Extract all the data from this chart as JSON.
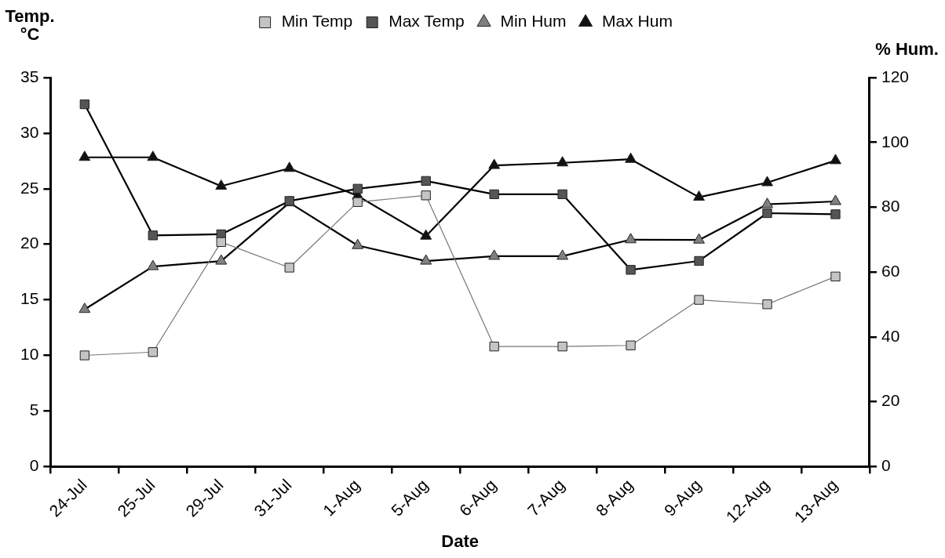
{
  "chart_data": {
    "type": "line",
    "xlabel": "Date",
    "ylabel": "Temp.\n°C",
    "y2label": "% Hum.",
    "categories": [
      "24-Jul",
      "25-Jul",
      "29-Jul",
      "31-Jul",
      "1-Aug",
      "5-Aug",
      "6-Aug",
      "7-Aug",
      "8-Aug",
      "9-Aug",
      "12-Aug",
      "13-Aug"
    ],
    "ylim": [
      0,
      35
    ],
    "yticks": [
      0,
      5,
      10,
      15,
      20,
      25,
      30,
      35
    ],
    "y2lim": [
      0,
      120
    ],
    "y2ticks": [
      0,
      20,
      40,
      60,
      80,
      100,
      120
    ],
    "grid": false,
    "legend": "top",
    "line_style": "solid",
    "series": [
      {
        "name": "Min Temp",
        "color": "#c4c4c4",
        "marker": "square",
        "values": [
          10,
          10.3,
          20.2,
          17.9,
          23.8,
          24.4,
          10.8,
          10.8,
          10.9,
          15,
          14.6,
          17.1
        ]
      },
      {
        "name": "Max Temp",
        "color": "#555555",
        "marker": "square",
        "values": [
          32.6,
          20.8,
          20.9,
          23.9,
          25,
          25.7,
          24.5,
          24.5,
          17.7,
          18.5,
          22.8,
          22.7
        ]
      },
      {
        "name": "Min Hum",
        "color": "#808080",
        "marker": "triangle",
        "axis": "y2",
        "values": [
          48.5,
          61.7,
          63.4,
          81.4,
          68.2,
          63.4,
          64.9,
          64.9,
          70,
          69.9,
          80.9,
          81.8
        ]
      },
      {
        "name": "Max Hum",
        "color": "#111111",
        "marker": "triangle",
        "axis": "y2",
        "values": [
          95.4,
          95.4,
          86.5,
          92,
          83.5,
          71.1,
          92.9,
          93.7,
          94.8,
          83.1,
          87.6,
          94.4
        ]
      }
    ]
  }
}
